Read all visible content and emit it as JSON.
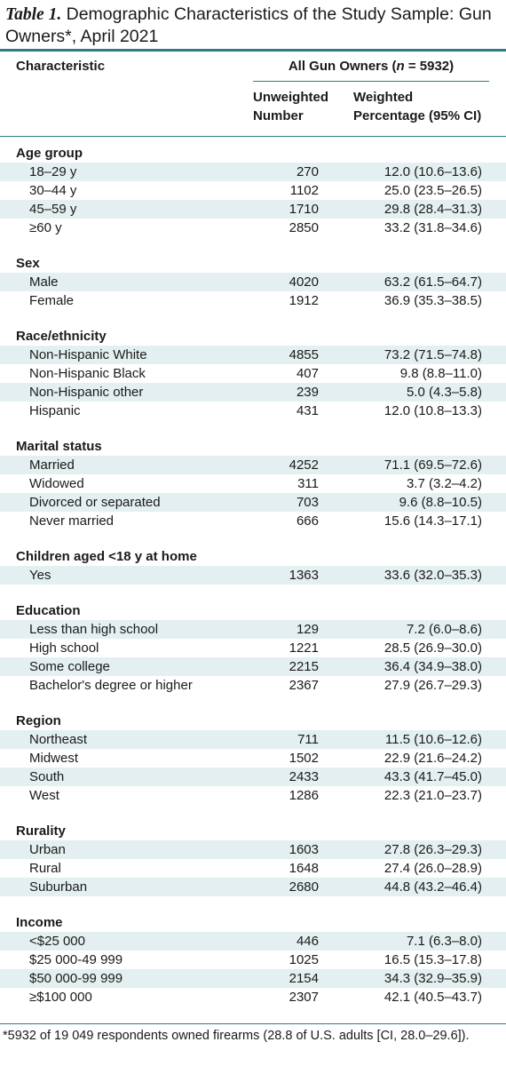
{
  "title": {
    "label": "Table 1.",
    "text": "Demographic Characteristics of the Study Sample: Gun Owners*, April 2021"
  },
  "header": {
    "characteristic": "Characteristic",
    "group": "All Gun Owners (n = 5932)",
    "col1": [
      "Unweighted",
      "Number"
    ],
    "col2": [
      "Weighted",
      "Percentage (95% CI)"
    ]
  },
  "sections": [
    {
      "name": "Age group",
      "rows": [
        {
          "label": "18–29 y",
          "n": "270",
          "pct": "12.0 (10.6–13.6)"
        },
        {
          "label": "30–44 y",
          "n": "1102",
          "pct": "25.0 (23.5–26.5)"
        },
        {
          "label": "45–59 y",
          "n": "1710",
          "pct": "29.8 (28.4–31.3)"
        },
        {
          "label": "≥60 y",
          "n": "2850",
          "pct": "33.2 (31.8–34.6)"
        }
      ]
    },
    {
      "name": "Sex",
      "rows": [
        {
          "label": "Male",
          "n": "4020",
          "pct": "63.2 (61.5–64.7)"
        },
        {
          "label": "Female",
          "n": "1912",
          "pct": "36.9 (35.3–38.5)"
        }
      ]
    },
    {
      "name": "Race/ethnicity",
      "rows": [
        {
          "label": "Non-Hispanic White",
          "n": "4855",
          "pct": "73.2 (71.5–74.8)"
        },
        {
          "label": "Non-Hispanic Black",
          "n": "407",
          "pct": "9.8 (8.8–11.0)"
        },
        {
          "label": "Non-Hispanic other",
          "n": "239",
          "pct": "5.0 (4.3–5.8)"
        },
        {
          "label": "Hispanic",
          "n": "431",
          "pct": "12.0 (10.8–13.3)"
        }
      ]
    },
    {
      "name": "Marital status",
      "rows": [
        {
          "label": "Married",
          "n": "4252",
          "pct": "71.1 (69.5–72.6)"
        },
        {
          "label": "Widowed",
          "n": "311",
          "pct": "3.7 (3.2–4.2)"
        },
        {
          "label": "Divorced or separated",
          "n": "703",
          "pct": "9.6 (8.8–10.5)"
        },
        {
          "label": "Never married",
          "n": "666",
          "pct": "15.6 (14.3–17.1)"
        }
      ]
    },
    {
      "name": "Children aged <18 y at home",
      "rows": [
        {
          "label": "Yes",
          "n": "1363",
          "pct": "33.6 (32.0–35.3)"
        }
      ]
    },
    {
      "name": "Education",
      "rows": [
        {
          "label": "Less than high school",
          "n": "129",
          "pct": "7.2 (6.0–8.6)"
        },
        {
          "label": "High school",
          "n": "1221",
          "pct": "28.5 (26.9–30.0)"
        },
        {
          "label": "Some college",
          "n": "2215",
          "pct": "36.4 (34.9–38.0)"
        },
        {
          "label": "Bachelor's degree or higher",
          "n": "2367",
          "pct": "27.9 (26.7–29.3)"
        }
      ]
    },
    {
      "name": "Region",
      "rows": [
        {
          "label": "Northeast",
          "n": "711",
          "pct": "11.5 (10.6–12.6)"
        },
        {
          "label": "Midwest",
          "n": "1502",
          "pct": "22.9 (21.6–24.2)"
        },
        {
          "label": "South",
          "n": "2433",
          "pct": "43.3 (41.7–45.0)"
        },
        {
          "label": "West",
          "n": "1286",
          "pct": "22.3 (21.0–23.7)"
        }
      ]
    },
    {
      "name": "Rurality",
      "rows": [
        {
          "label": "Urban",
          "n": "1603",
          "pct": "27.8 (26.3–29.3)"
        },
        {
          "label": "Rural",
          "n": "1648",
          "pct": "27.4 (26.0–28.9)"
        },
        {
          "label": "Suburban",
          "n": "2680",
          "pct": "44.8 (43.2–46.4)"
        }
      ]
    },
    {
      "name": "Income",
      "rows": [
        {
          "label": "<$25 000",
          "n": "446",
          "pct": "7.1 (6.3–8.0)"
        },
        {
          "label": "$25 000-49 999",
          "n": "1025",
          "pct": "16.5 (15.3–17.8)"
        },
        {
          "label": "$50 000-99 999",
          "n": "2154",
          "pct": "34.3 (32.9–35.9)"
        },
        {
          "label": "≥$100 000",
          "n": "2307",
          "pct": "42.1 (40.5–43.7)"
        }
      ]
    }
  ],
  "footnote": "*5932 of 19 049 respondents owned firearms (28.8 of U.S. adults [CI, 28.0–29.6]).",
  "colors": {
    "accent": "#2f7c86",
    "row_shade": "#e3eff0"
  }
}
